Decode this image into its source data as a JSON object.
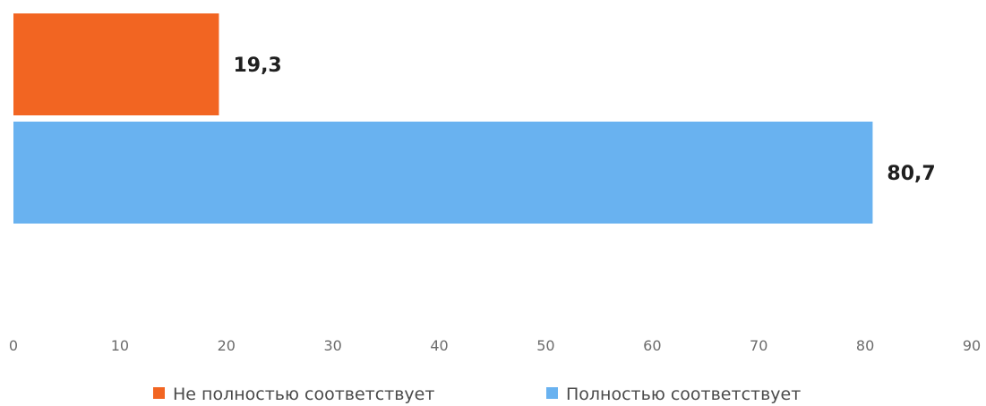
{
  "chart_data": {
    "type": "bar",
    "orientation": "horizontal",
    "xlim": [
      0,
      90
    ],
    "x_ticks": [
      "0",
      "10",
      "20",
      "30",
      "40",
      "50",
      "60",
      "70",
      "80",
      "90"
    ],
    "grid": false,
    "legend_position": "bottom",
    "series": [
      {
        "name": "Не полностью соответствует",
        "value": 19.3,
        "label": "19,3",
        "color": "#f26522"
      },
      {
        "name": "Полностью соответствует",
        "value": 80.7,
        "label": "80,7",
        "color": "#69b2f0"
      }
    ]
  }
}
